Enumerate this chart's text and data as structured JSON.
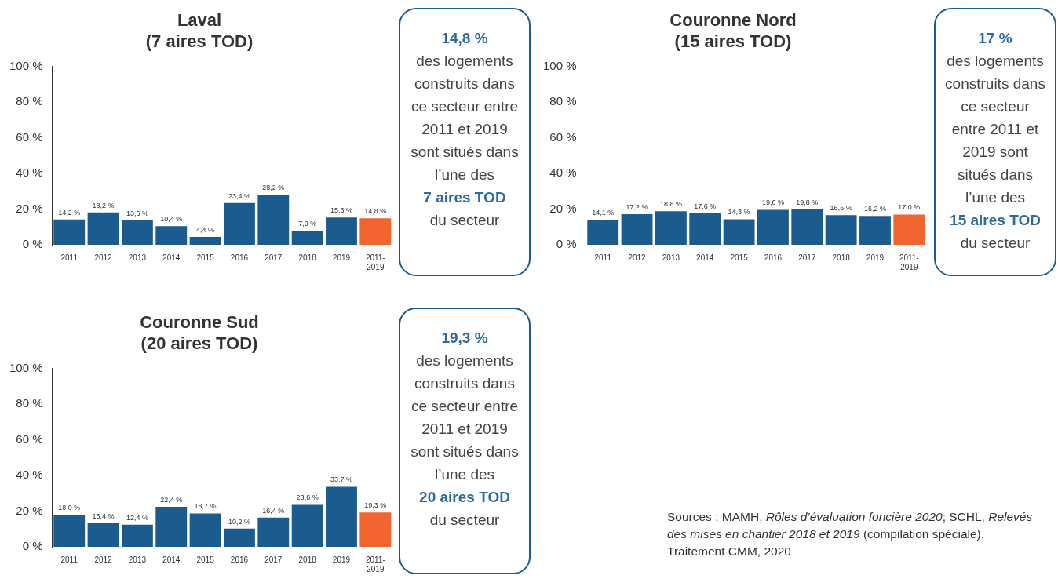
{
  "chart_data": [
    {
      "type": "bar",
      "title": "Laval",
      "subtitle": "(7 aires TOD)",
      "categories": [
        "2011",
        "2012",
        "2013",
        "2014",
        "2015",
        "2016",
        "2017",
        "2018",
        "2019",
        "2011-2019"
      ],
      "values": [
        14.2,
        18.2,
        13.6,
        10.4,
        4.4,
        23.4,
        28.2,
        7.9,
        15.3,
        14.8
      ],
      "value_labels": [
        "14,2 %",
        "18,2 %",
        "13,6 %",
        "10,4 %",
        "4,4 %",
        "23,4 %",
        "28,2 %",
        "7,9 %",
        "15,3 %",
        "14,8 %"
      ],
      "colors": [
        "#1c5b8e",
        "#1c5b8e",
        "#1c5b8e",
        "#1c5b8e",
        "#1c5b8e",
        "#1c5b8e",
        "#1c5b8e",
        "#1c5b8e",
        "#1c5b8e",
        "#f26531"
      ],
      "ylim": [
        0,
        100
      ],
      "yticks": [
        {
          "value": 0,
          "label": "0 %"
        },
        {
          "value": 20,
          "label": "20 %"
        },
        {
          "value": 40,
          "label": "40 %"
        },
        {
          "value": 60,
          "label": "60 %"
        },
        {
          "value": 80,
          "label": "80 %"
        },
        {
          "value": 100,
          "label": "100 %"
        }
      ],
      "grid": false,
      "legend": false,
      "annotations": [
        "14,8 %",
        "des logements construits dans ce secteur entre 2011 et 2019 sont situés dans l’une des",
        "7 aires TOD",
        "du secteur"
      ]
    },
    {
      "type": "bar",
      "title": "Couronne Nord",
      "subtitle": "(15 aires TOD)",
      "categories": [
        "2011",
        "2012",
        "2013",
        "2014",
        "2015",
        "2016",
        "2017",
        "2018",
        "2019",
        "2011-2019"
      ],
      "values": [
        14.1,
        17.2,
        18.8,
        17.6,
        14.3,
        19.6,
        19.8,
        16.6,
        16.2,
        17.0
      ],
      "value_labels": [
        "14,1 %",
        "17,2 %",
        "18,8 %",
        "17,6 %",
        "14,3 %",
        "19,6 %",
        "19,8 %",
        "16,6 %",
        "16,2 %",
        "17,0 %"
      ],
      "colors": [
        "#1c5b8e",
        "#1c5b8e",
        "#1c5b8e",
        "#1c5b8e",
        "#1c5b8e",
        "#1c5b8e",
        "#1c5b8e",
        "#1c5b8e",
        "#1c5b8e",
        "#f26531"
      ],
      "ylim": [
        0,
        100
      ],
      "yticks": [
        {
          "value": 0,
          "label": "0 %"
        },
        {
          "value": 20,
          "label": "20 %"
        },
        {
          "value": 40,
          "label": "40 %"
        },
        {
          "value": 60,
          "label": "60 %"
        },
        {
          "value": 80,
          "label": "80 %"
        },
        {
          "value": 100,
          "label": "100 %"
        }
      ],
      "grid": false,
      "legend": false,
      "annotations": [
        "17 %",
        "des logements construits dans ce secteur entre 2011 et 2019 sont situés dans l’une des",
        "15 aires TOD",
        "du secteur"
      ]
    },
    {
      "type": "bar",
      "title": "Couronne Sud",
      "subtitle": "(20 aires TOD)",
      "categories": [
        "2011",
        "2012",
        "2013",
        "2014",
        "2015",
        "2016",
        "2017",
        "2018",
        "2019",
        "2011-2019"
      ],
      "values": [
        18.0,
        13.4,
        12.4,
        22.4,
        18.7,
        10.2,
        16.4,
        23.6,
        33.7,
        19.3
      ],
      "value_labels": [
        "18,0 %",
        "13,4 %",
        "12,4 %",
        "22,4 %",
        "18,7 %",
        "10,2 %",
        "16,4 %",
        "23,6 %",
        "33,7 %",
        "19,3 %"
      ],
      "colors": [
        "#1c5b8e",
        "#1c5b8e",
        "#1c5b8e",
        "#1c5b8e",
        "#1c5b8e",
        "#1c5b8e",
        "#1c5b8e",
        "#1c5b8e",
        "#1c5b8e",
        "#f26531"
      ],
      "ylim": [
        0,
        100
      ],
      "yticks": [
        {
          "value": 0,
          "label": "0 %"
        },
        {
          "value": 20,
          "label": "20 %"
        },
        {
          "value": 40,
          "label": "40 %"
        },
        {
          "value": 60,
          "label": "60 %"
        },
        {
          "value": 80,
          "label": "80 %"
        },
        {
          "value": 100,
          "label": "100 %"
        }
      ],
      "grid": false,
      "legend": false,
      "annotations": [
        "19,3 %",
        "des logements construits dans ce secteur entre 2011 et 2019 sont situés dans l’une des",
        "20 aires TOD",
        "du secteur"
      ]
    },
    {
      "type": "other",
      "annotations": [
        "Sources : MAMH, ",
        "Rôles d’évaluation foncière 2020",
        "; SCHL, ",
        "Relevés des mises en chantier 2018 et 2019",
        " (compilation spéciale). Traitement CMM, 2020"
      ]
    }
  ]
}
